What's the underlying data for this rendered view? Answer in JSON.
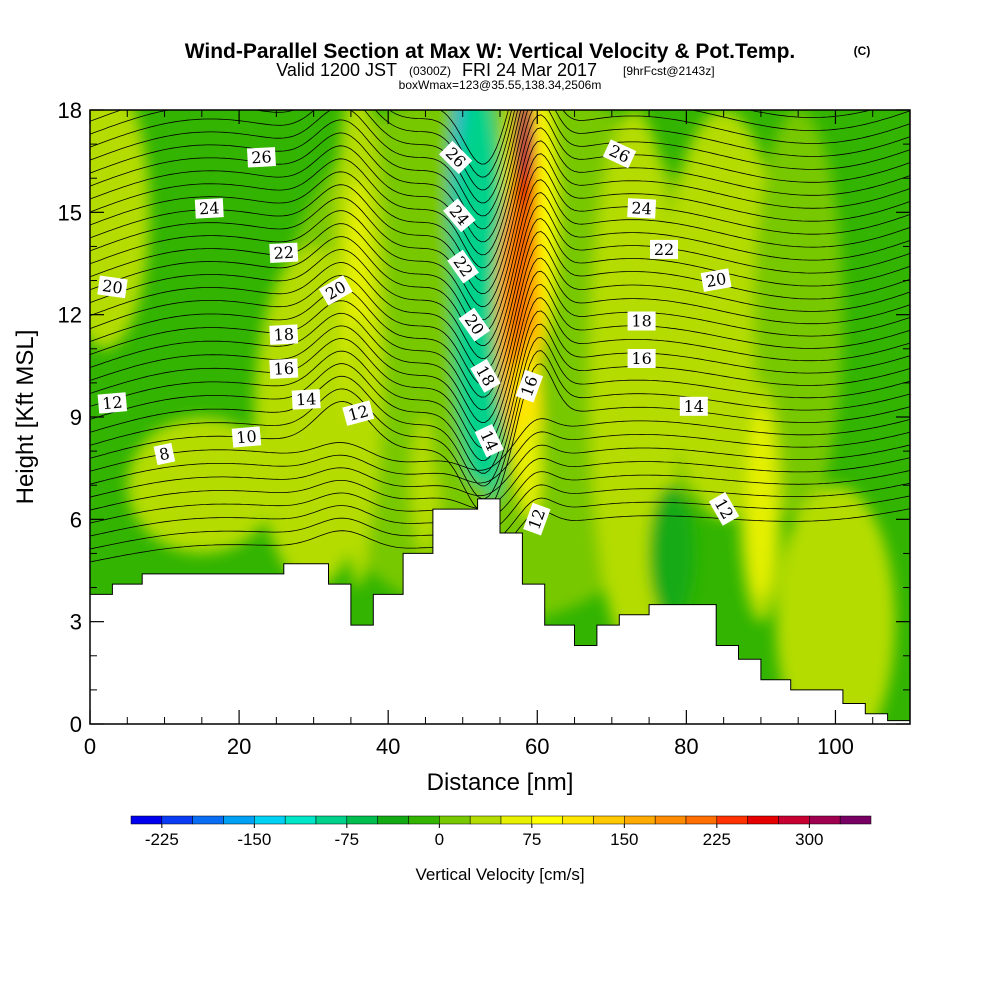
{
  "header": {
    "title": "Wind-Parallel Section at Max W: Vertical Velocity & Pot.Temp.",
    "copyright": "(C)",
    "valid_prefix": "Valid 1200 JST",
    "valid_utc": "(0300Z)",
    "valid_date": "FRI 24 Mar 2017",
    "forecast": "[9hrFcst@2143z]",
    "box_info": "boxWmax=123@35.55,138.34,2506m"
  },
  "chart_data": {
    "type": "heatmap",
    "xlabel": "Distance [nm]",
    "ylabel": "Height [Kft MSL]",
    "xlim": [
      0,
      110
    ],
    "ylim": [
      0,
      18
    ],
    "x_ticks": [
      0,
      20,
      40,
      60,
      80,
      100
    ],
    "y_ticks": [
      0,
      3,
      6,
      9,
      12,
      15,
      18
    ],
    "colorbar": {
      "label": "Vertical Velocity [cm/s]",
      "tick_labels": [
        "-225",
        "-150",
        "-75",
        "0",
        "75",
        "150",
        "225",
        "300"
      ],
      "tick_values": [
        -225,
        -150,
        -75,
        0,
        75,
        150,
        225,
        300
      ],
      "range": [
        -250,
        350
      ],
      "step": 25,
      "colors": [
        "#0000ee",
        "#0a3cf5",
        "#0a6ef5",
        "#00a0f5",
        "#00d2f5",
        "#00e6c8",
        "#00d28c",
        "#00be50",
        "#14aa14",
        "#32b400",
        "#78c800",
        "#b4dc00",
        "#e6f000",
        "#ffff00",
        "#ffe600",
        "#ffc800",
        "#ffaa00",
        "#ff8c00",
        "#ff6e00",
        "#ff3200",
        "#e60000",
        "#c80032",
        "#a00050",
        "#780064"
      ]
    },
    "terrain_profile": {
      "x": [
        0,
        3,
        3,
        7,
        7,
        26,
        26,
        32,
        32,
        35,
        35,
        38,
        38,
        42,
        42,
        46,
        46,
        52,
        52,
        55,
        55,
        58,
        58,
        61,
        61,
        65,
        65,
        68,
        68,
        71,
        71,
        75,
        75,
        84,
        84,
        87,
        87,
        90,
        90,
        94,
        94,
        101,
        101,
        104,
        104,
        107,
        107,
        110
      ],
      "y": [
        3.8,
        3.8,
        4.1,
        4.1,
        4.4,
        4.4,
        4.7,
        4.7,
        4.1,
        4.1,
        2.9,
        2.9,
        3.8,
        3.8,
        5.0,
        5.0,
        6.3,
        6.3,
        6.6,
        6.6,
        5.6,
        5.6,
        4.1,
        4.1,
        2.9,
        2.9,
        2.3,
        2.3,
        2.9,
        2.9,
        3.2,
        3.2,
        3.5,
        3.5,
        2.3,
        2.3,
        1.9,
        1.9,
        1.3,
        1.3,
        1.0,
        1.0,
        0.6,
        0.6,
        0.3,
        0.3,
        0.1,
        0.1
      ]
    },
    "theta_contour_labels": [
      {
        "text": "26",
        "x": 23,
        "y": 16.6,
        "angle": -3
      },
      {
        "text": "24",
        "x": 16,
        "y": 15.1,
        "angle": -3
      },
      {
        "text": "22",
        "x": 26,
        "y": 13.8,
        "angle": -3
      },
      {
        "text": "20",
        "x": 3,
        "y": 12.8,
        "angle": 8
      },
      {
        "text": "20",
        "x": 33,
        "y": 12.7,
        "angle": -30
      },
      {
        "text": "18",
        "x": 26,
        "y": 11.4,
        "angle": -3
      },
      {
        "text": "16",
        "x": 26,
        "y": 10.4,
        "angle": -3
      },
      {
        "text": "14",
        "x": 29,
        "y": 9.5,
        "angle": -3
      },
      {
        "text": "12",
        "x": 3,
        "y": 9.4,
        "angle": -5
      },
      {
        "text": "12",
        "x": 36,
        "y": 9.1,
        "angle": -15
      },
      {
        "text": "10",
        "x": 21,
        "y": 8.4,
        "angle": -5
      },
      {
        "text": "8",
        "x": 10,
        "y": 7.9,
        "angle": -12
      },
      {
        "text": "26",
        "x": 49,
        "y": 16.6,
        "angle": 45
      },
      {
        "text": "24",
        "x": 49.5,
        "y": 14.9,
        "angle": 50
      },
      {
        "text": "22",
        "x": 50,
        "y": 13.4,
        "angle": 55
      },
      {
        "text": "20",
        "x": 51.5,
        "y": 11.7,
        "angle": 55
      },
      {
        "text": "18",
        "x": 53,
        "y": 10.2,
        "angle": 60
      },
      {
        "text": "14",
        "x": 53.5,
        "y": 8.3,
        "angle": 65
      },
      {
        "text": "16",
        "x": 59,
        "y": 9.9,
        "angle": -70
      },
      {
        "text": "12",
        "x": 60,
        "y": 6.0,
        "angle": -70
      },
      {
        "text": "26",
        "x": 71,
        "y": 16.7,
        "angle": 25
      },
      {
        "text": "24",
        "x": 74,
        "y": 15.1,
        "angle": 3
      },
      {
        "text": "22",
        "x": 77,
        "y": 13.9,
        "angle": 0
      },
      {
        "text": "20",
        "x": 84,
        "y": 13.0,
        "angle": -10
      },
      {
        "text": "18",
        "x": 74,
        "y": 11.8,
        "angle": 0
      },
      {
        "text": "16",
        "x": 74,
        "y": 10.7,
        "angle": 0
      },
      {
        "text": "14",
        "x": 81,
        "y": 9.3,
        "angle": 0
      },
      {
        "text": "12",
        "x": 85,
        "y": 6.3,
        "angle": 60
      }
    ]
  }
}
